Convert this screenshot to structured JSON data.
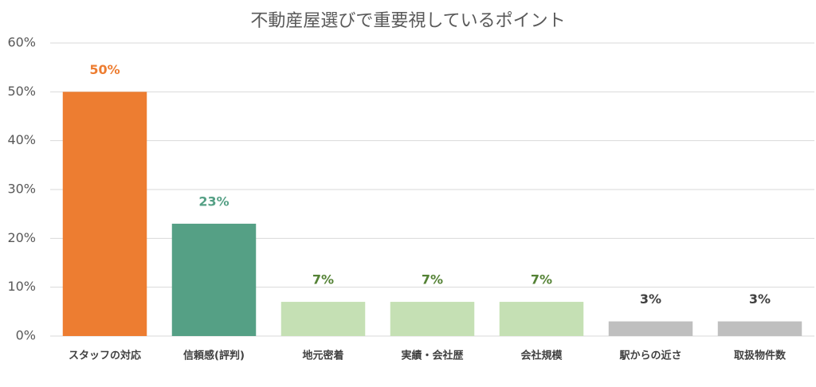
{
  "chart_data": {
    "type": "bar",
    "title": "不動産屋選びで重要視しているポイント",
    "categories": [
      "スタッフの対応",
      "信頼感(評判)",
      "地元密着",
      "実績・会社歴",
      "会社規模",
      "駅からの近さ",
      "取扱物件数"
    ],
    "values": [
      50,
      23,
      7,
      7,
      7,
      3,
      3
    ],
    "value_labels": [
      "50%",
      "23%",
      "7%",
      "7%",
      "7%",
      "3%",
      "3%"
    ],
    "colors": [
      "#ed7d31",
      "#55a085",
      "#c5e0b4",
      "#c5e0b4",
      "#c5e0b4",
      "#bfbfbf",
      "#bfbfbf"
    ],
    "label_colors": [
      "#ed7d31",
      "#55a085",
      "#548235",
      "#548235",
      "#548235",
      "#404040",
      "#404040"
    ],
    "ylim": [
      0,
      60
    ],
    "yticks": [
      {
        "value": 0,
        "label": "0%"
      },
      {
        "value": 10,
        "label": "10%"
      },
      {
        "value": 20,
        "label": "20%"
      },
      {
        "value": 30,
        "label": "30%"
      },
      {
        "value": 40,
        "label": "40%"
      },
      {
        "value": 50,
        "label": "50%"
      },
      {
        "value": 60,
        "label": "60%"
      }
    ],
    "grid": true
  }
}
